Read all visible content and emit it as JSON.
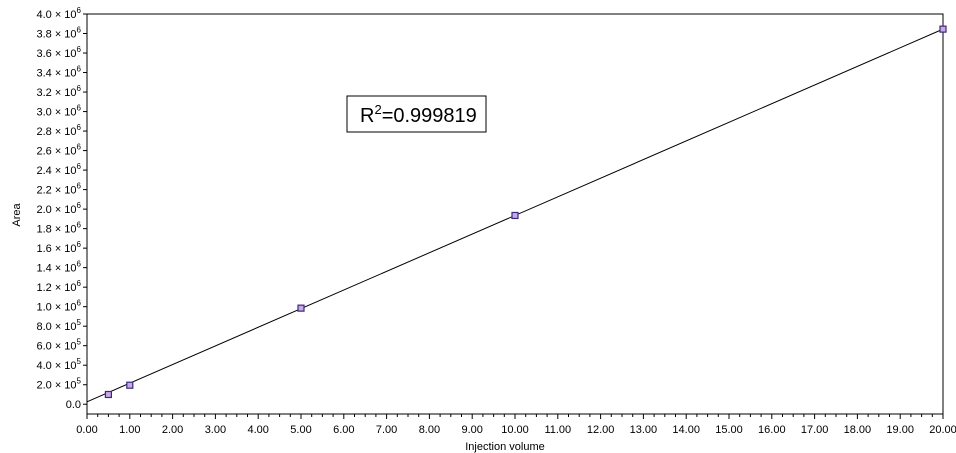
{
  "chart_data": {
    "type": "scatter",
    "title": "",
    "xlabel": "Injection volume",
    "ylabel": "Area",
    "xlim": [
      0,
      20
    ],
    "ylim": [
      -100000,
      4000000
    ],
    "grid": false,
    "legend": "none",
    "x_ticks": [
      "0.00",
      "1.00",
      "2.00",
      "3.00",
      "4.00",
      "5.00",
      "6.00",
      "7.00",
      "8.00",
      "9.00",
      "10.00",
      "11.00",
      "12.00",
      "13.00",
      "14.00",
      "15.00",
      "16.00",
      "17.00",
      "18.00",
      "19.00",
      "20.00"
    ],
    "y_ticks": [
      {
        "value": 0,
        "mantissa": "0.0",
        "exp": ""
      },
      {
        "value": 200000,
        "mantissa": "2.0",
        "exp": "5"
      },
      {
        "value": 400000,
        "mantissa": "4.0",
        "exp": "5"
      },
      {
        "value": 600000,
        "mantissa": "6.0",
        "exp": "5"
      },
      {
        "value": 800000,
        "mantissa": "8.0",
        "exp": "5"
      },
      {
        "value": 1000000,
        "mantissa": "1.0",
        "exp": "6"
      },
      {
        "value": 1200000,
        "mantissa": "1.2",
        "exp": "6"
      },
      {
        "value": 1400000,
        "mantissa": "1.4",
        "exp": "6"
      },
      {
        "value": 1600000,
        "mantissa": "1.6",
        "exp": "6"
      },
      {
        "value": 1800000,
        "mantissa": "1.8",
        "exp": "6"
      },
      {
        "value": 2000000,
        "mantissa": "2.0",
        "exp": "6"
      },
      {
        "value": 2200000,
        "mantissa": "2.2",
        "exp": "6"
      },
      {
        "value": 2400000,
        "mantissa": "2.4",
        "exp": "6"
      },
      {
        "value": 2600000,
        "mantissa": "2.6",
        "exp": "6"
      },
      {
        "value": 2800000,
        "mantissa": "2.8",
        "exp": "6"
      },
      {
        "value": 3000000,
        "mantissa": "3.0",
        "exp": "6"
      },
      {
        "value": 3200000,
        "mantissa": "3.2",
        "exp": "6"
      },
      {
        "value": 3400000,
        "mantissa": "3.4",
        "exp": "6"
      },
      {
        "value": 3600000,
        "mantissa": "3.6",
        "exp": "6"
      },
      {
        "value": 3800000,
        "mantissa": "3.8",
        "exp": "6"
      },
      {
        "value": 4000000,
        "mantissa": "4.0",
        "exp": "6"
      }
    ],
    "points": [
      {
        "x": 0.5,
        "y": 100000
      },
      {
        "x": 1.0,
        "y": 195000
      },
      {
        "x": 5.0,
        "y": 985000
      },
      {
        "x": 10.0,
        "y": 1935000
      },
      {
        "x": 20.0,
        "y": 3845000
      }
    ],
    "fit_line": {
      "x_start": 0.0,
      "y_start": 25000,
      "x_end": 20.0,
      "y_end": 3845000
    },
    "annotation": {
      "text": "R",
      "superscript": "2",
      "rest": "=0.999819"
    },
    "colors": {
      "marker_fill": "#c9a8e8",
      "marker_stroke": "#3a2a7a",
      "line": "#000000",
      "axes": "#000000"
    }
  }
}
